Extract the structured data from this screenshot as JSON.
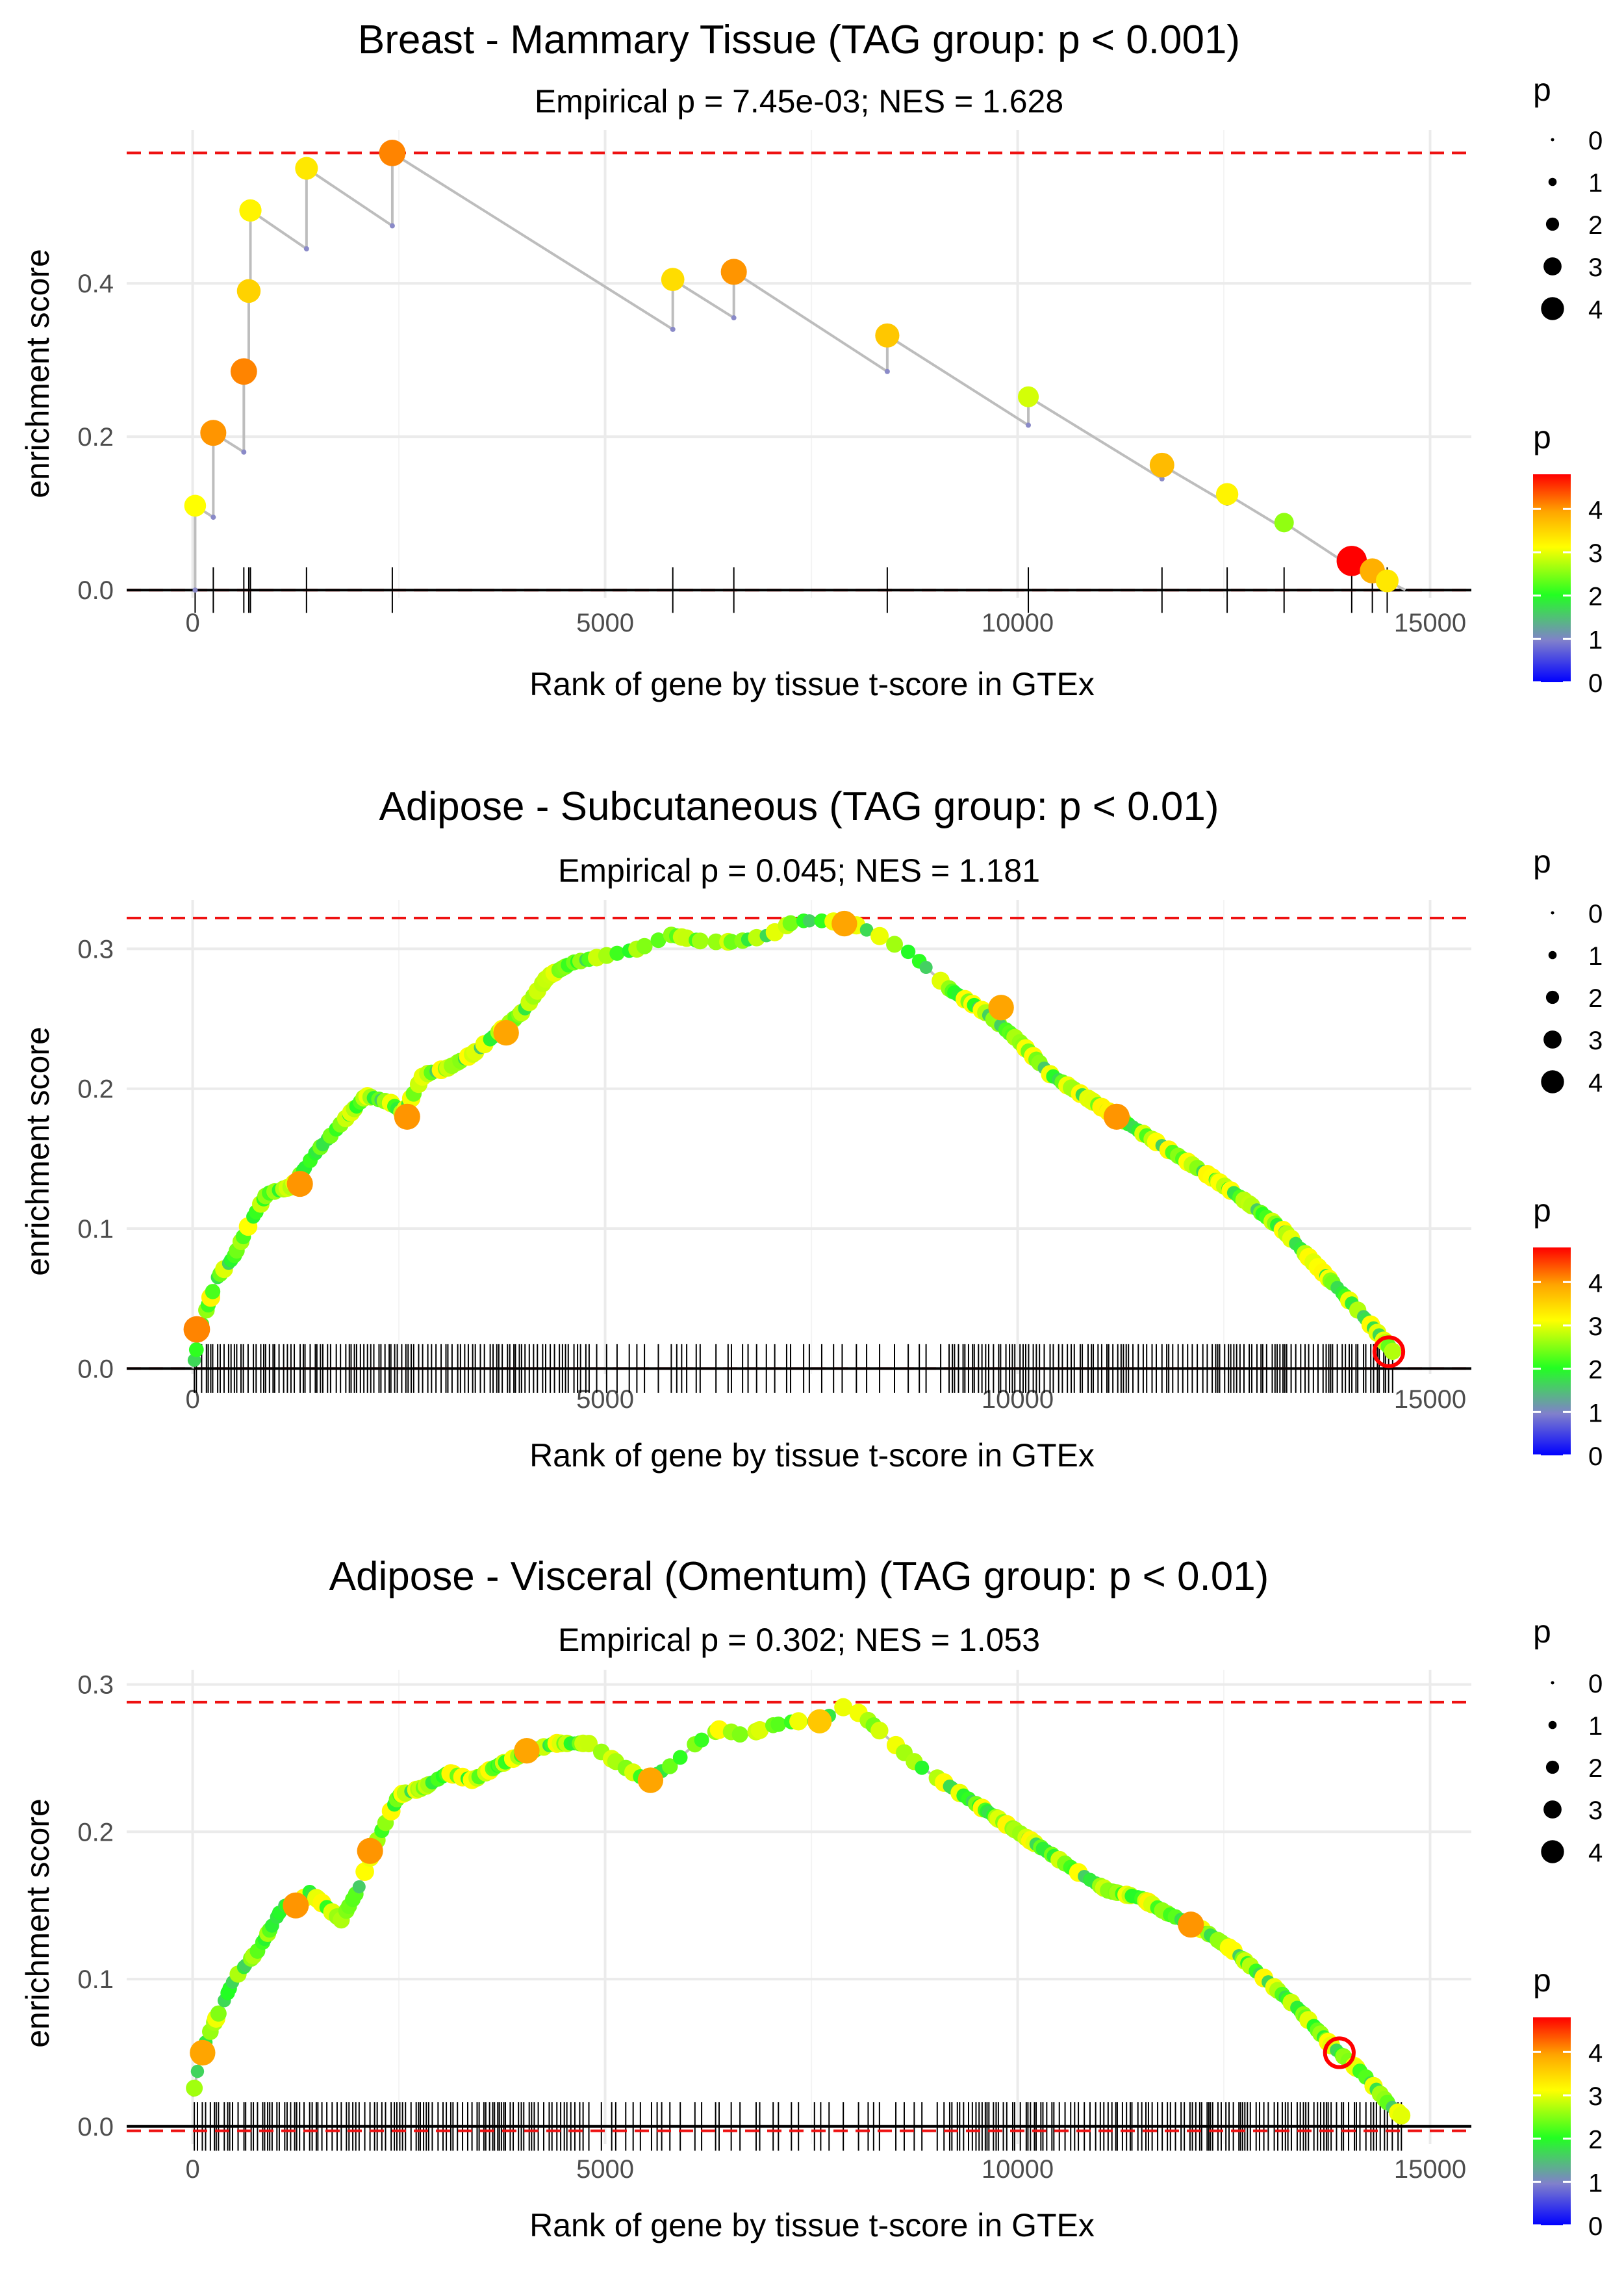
{
  "chart_data": [
    {
      "type": "line",
      "title": "Breast - Mammary Tissue (TAG group: p < 0.001)",
      "subtitle": "Empirical p = 7.45e-03; NES = 1.628",
      "xlabel": "Rank of gene by tissue t-score in GTEx",
      "ylabel": "enrichment score",
      "xlim": [
        -800,
        15500
      ],
      "ylim": [
        -0.01,
        0.6
      ],
      "xticks": [
        0,
        5000,
        10000,
        15000
      ],
      "xtick_labels": [
        "0",
        "5000",
        "10000",
        "15000"
      ],
      "yticks": [
        0.0,
        0.2,
        0.4
      ],
      "ytick_labels": [
        "0.0",
        "0.2",
        "0.4"
      ],
      "max_es": 0.57,
      "min_es": 0.0,
      "hits": [
        30,
        250,
        620,
        680,
        700,
        1380,
        2420,
        5820,
        6560,
        8420,
        10130,
        11750,
        12540,
        13230,
        14050,
        14300,
        14480
      ],
      "pvals": [
        3.0,
        3.9,
        4.0,
        3.4,
        3.1,
        3.2,
        4.0,
        3.3,
        3.9,
        3.5,
        2.8,
        3.6,
        3.1,
        2.5,
        4.8,
        3.7,
        3.2
      ],
      "es": [
        0.11,
        0.205,
        0.285,
        0.39,
        0.495,
        0.55,
        0.57,
        0.405,
        0.415,
        0.332,
        0.252,
        0.163,
        0.125,
        0.088,
        0.038,
        0.025,
        0.012
      ],
      "legend_size_title": "p",
      "legend_size_labels": [
        "0",
        "1",
        "2",
        "3",
        "4"
      ],
      "legend_color_title": "p",
      "legend_color_labels": [
        "4",
        "3",
        "2",
        "1",
        "0"
      ],
      "legend_placement": "right"
    },
    {
      "type": "line",
      "title": "Adipose - Subcutaneous (TAG group: p < 0.01)",
      "subtitle": "Empirical p = 0.045; NES = 1.181",
      "xlabel": "Rank of gene by tissue t-score in GTEx",
      "ylabel": "enrichment score",
      "xlim": [
        -800,
        15500
      ],
      "ylim": [
        -0.004,
        0.335
      ],
      "xticks": [
        0,
        5000,
        10000,
        15000
      ],
      "xtick_labels": [
        "0",
        "5000",
        "10000",
        "15000"
      ],
      "yticks": [
        0.0,
        0.1,
        0.2,
        0.3
      ],
      "ytick_labels": [
        "0.0",
        "0.1",
        "0.2",
        "0.3"
      ],
      "max_es": 0.322,
      "min_es": 0.0,
      "curve_points": [
        [
          0,
          0.0
        ],
        [
          100,
          0.03
        ],
        [
          300,
          0.065
        ],
        [
          500,
          0.08
        ],
        [
          700,
          0.105
        ],
        [
          900,
          0.125
        ],
        [
          1200,
          0.13
        ],
        [
          1500,
          0.155
        ],
        [
          1800,
          0.175
        ],
        [
          2100,
          0.195
        ],
        [
          2400,
          0.19
        ],
        [
          2550,
          0.182
        ],
        [
          2800,
          0.21
        ],
        [
          3100,
          0.215
        ],
        [
          3400,
          0.225
        ],
        [
          3700,
          0.24
        ],
        [
          4000,
          0.255
        ],
        [
          4300,
          0.28
        ],
        [
          4600,
          0.29
        ],
        [
          5000,
          0.295
        ],
        [
          5400,
          0.3
        ],
        [
          5800,
          0.31
        ],
        [
          6200,
          0.305
        ],
        [
          6600,
          0.305
        ],
        [
          7000,
          0.31
        ],
        [
          7300,
          0.32
        ],
        [
          7700,
          0.32
        ],
        [
          8000,
          0.318
        ],
        [
          8300,
          0.31
        ],
        [
          8700,
          0.297
        ],
        [
          9200,
          0.27
        ],
        [
          9600,
          0.255
        ],
        [
          10000,
          0.235
        ],
        [
          10400,
          0.21
        ],
        [
          10800,
          0.195
        ],
        [
          11200,
          0.18
        ],
        [
          11600,
          0.165
        ],
        [
          12000,
          0.15
        ],
        [
          12400,
          0.135
        ],
        [
          12800,
          0.118
        ],
        [
          13200,
          0.1
        ],
        [
          13600,
          0.075
        ],
        [
          14000,
          0.05
        ],
        [
          14300,
          0.03
        ],
        [
          14550,
          0.012
        ]
      ],
      "big_hits": [
        [
          50,
          0.028,
          4.0
        ],
        [
          1300,
          0.132,
          3.9
        ],
        [
          2600,
          0.18,
          3.9
        ],
        [
          3800,
          0.24,
          3.8
        ],
        [
          7900,
          0.318,
          3.8
        ],
        [
          9800,
          0.258,
          3.8
        ],
        [
          11200,
          0.18,
          3.9
        ],
        [
          14500,
          0.012,
          4.8
        ]
      ],
      "legend_size_title": "p",
      "legend_size_labels": [
        "0",
        "1",
        "2",
        "3",
        "4"
      ],
      "legend_color_title": "p",
      "legend_color_labels": [
        "4",
        "3",
        "2",
        "1",
        "0"
      ],
      "legend_placement": "right"
    },
    {
      "type": "line",
      "title": "Adipose - Visceral (Omentum) (TAG group: p < 0.01)",
      "subtitle": "Empirical p = 0.302; NES = 1.053",
      "xlabel": "Rank of gene by tissue t-score in GTEx",
      "ylabel": "enrichment score",
      "xlim": [
        -800,
        15500
      ],
      "ylim": [
        -0.012,
        0.31
      ],
      "xticks": [
        0,
        5000,
        10000,
        15000
      ],
      "xtick_labels": [
        "0",
        "5000",
        "10000",
        "15000"
      ],
      "yticks": [
        0.0,
        0.1,
        0.2,
        0.3
      ],
      "ytick_labels": [
        "0.0",
        "0.1",
        "0.2",
        "0.3"
      ],
      "max_es": 0.288,
      "min_es": -0.003,
      "curve_points": [
        [
          0,
          0.02
        ],
        [
          100,
          0.05
        ],
        [
          300,
          0.075
        ],
        [
          500,
          0.1
        ],
        [
          800,
          0.12
        ],
        [
          1100,
          0.15
        ],
        [
          1300,
          0.15
        ],
        [
          1400,
          0.16
        ],
        [
          1800,
          0.14
        ],
        [
          2000,
          0.16
        ],
        [
          2200,
          0.19
        ],
        [
          2500,
          0.225
        ],
        [
          2800,
          0.23
        ],
        [
          3100,
          0.24
        ],
        [
          3400,
          0.235
        ],
        [
          3700,
          0.245
        ],
        [
          4100,
          0.255
        ],
        [
          4400,
          0.26
        ],
        [
          4800,
          0.26
        ],
        [
          5200,
          0.245
        ],
        [
          5500,
          0.235
        ],
        [
          5800,
          0.245
        ],
        [
          6100,
          0.26
        ],
        [
          6400,
          0.27
        ],
        [
          6700,
          0.265
        ],
        [
          7000,
          0.272
        ],
        [
          7300,
          0.275
        ],
        [
          7600,
          0.275
        ],
        [
          7900,
          0.285
        ],
        [
          8100,
          0.28
        ],
        [
          8400,
          0.265
        ],
        [
          8800,
          0.245
        ],
        [
          9200,
          0.23
        ],
        [
          9600,
          0.215
        ],
        [
          10000,
          0.2
        ],
        [
          10400,
          0.185
        ],
        [
          10800,
          0.17
        ],
        [
          11100,
          0.16
        ],
        [
          11500,
          0.155
        ],
        [
          11800,
          0.145
        ],
        [
          12200,
          0.135
        ],
        [
          12600,
          0.12
        ],
        [
          13000,
          0.1
        ],
        [
          13400,
          0.08
        ],
        [
          13800,
          0.055
        ],
        [
          14200,
          0.035
        ],
        [
          14500,
          0.015
        ],
        [
          14700,
          0.005
        ]
      ],
      "big_hits": [
        [
          120,
          0.05,
          3.8
        ],
        [
          1250,
          0.15,
          3.9
        ],
        [
          2150,
          0.187,
          3.9
        ],
        [
          4050,
          0.255,
          3.8
        ],
        [
          5550,
          0.235,
          3.8
        ],
        [
          7600,
          0.275,
          3.5
        ],
        [
          12100,
          0.137,
          3.9
        ],
        [
          13900,
          0.05,
          4.8
        ]
      ],
      "legend_size_title": "p",
      "legend_size_labels": [
        "0",
        "1",
        "2",
        "3",
        "4"
      ],
      "legend_color_title": "p",
      "legend_color_labels": [
        "4",
        "3",
        "2",
        "1",
        "0"
      ],
      "legend_placement": "right"
    }
  ],
  "colors": {
    "background": "#ffffff",
    "grid": "#ebebeb",
    "running_line": "#bdbdbd",
    "max_line": "#ee1111",
    "zero_line": "#000000",
    "ticks": "#000000",
    "small_point": "#8a8ac8",
    "scale_low": "#0000ff",
    "scale_mid1": "#7f7fd0",
    "scale_mid2": "#22ff22",
    "scale_mid3": "#ffff00",
    "scale_mid4": "#ffa500",
    "scale_high": "#ff0000"
  }
}
